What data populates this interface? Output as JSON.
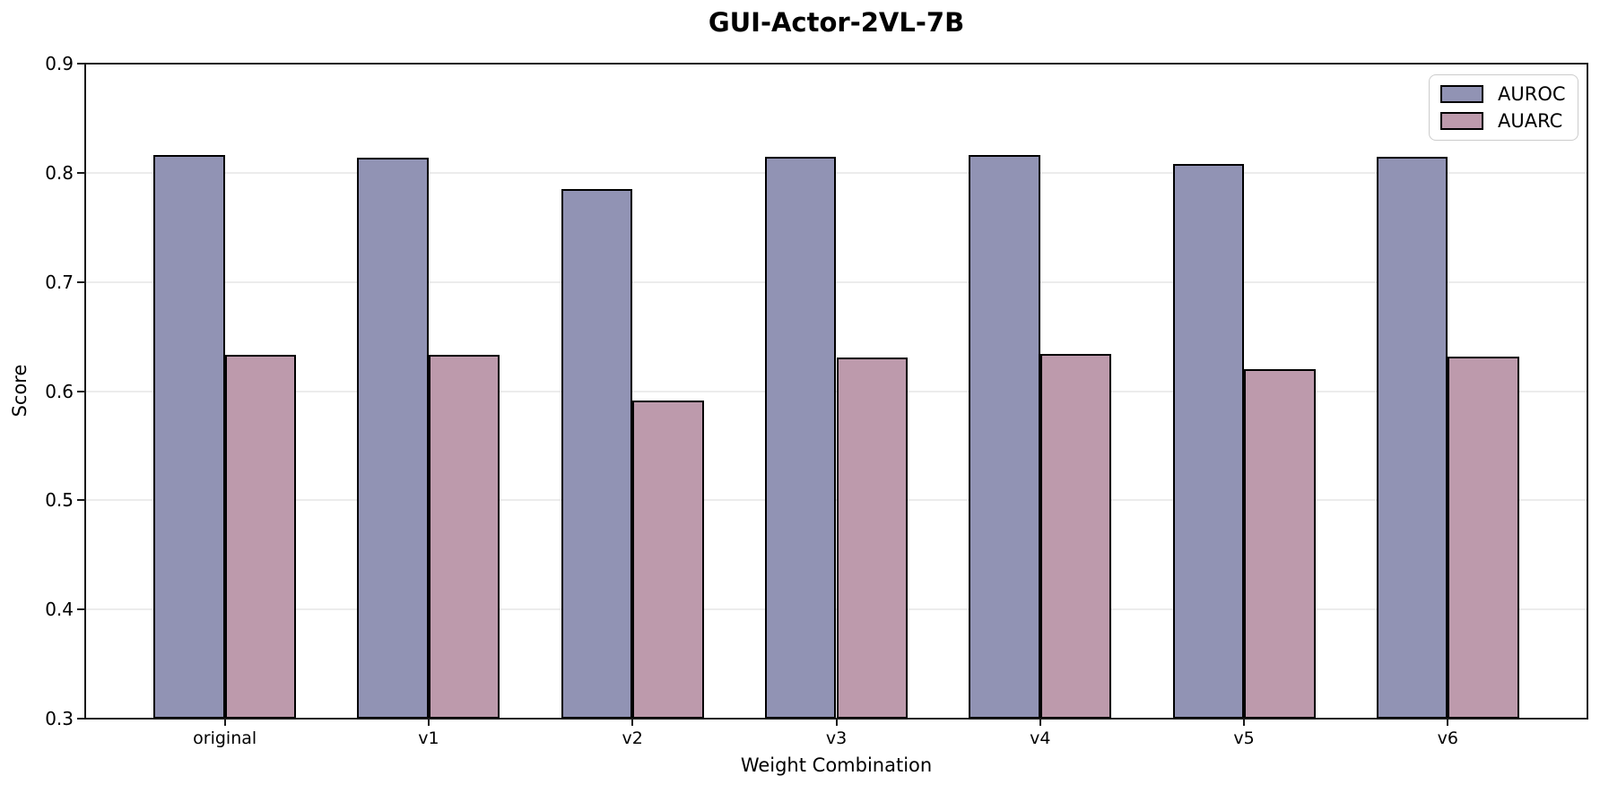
{
  "chart_data": {
    "type": "bar",
    "title": "GUI-Actor-2VL-7B",
    "xlabel": "Weight Combination",
    "ylabel": "Score",
    "categories": [
      "original",
      "v1",
      "v2",
      "v3",
      "v4",
      "v5",
      "v6"
    ],
    "series": [
      {
        "name": "AUROC",
        "color": "#9193b4",
        "values": [
          0.816,
          0.814,
          0.785,
          0.815,
          0.816,
          0.808,
          0.815
        ]
      },
      {
        "name": "AUARC",
        "color": "#bd9aac",
        "values": [
          0.633,
          0.633,
          0.591,
          0.631,
          0.634,
          0.62,
          0.632
        ]
      }
    ],
    "ylim": [
      0.3,
      0.9
    ],
    "yticks": [
      0.3,
      0.4,
      0.5,
      0.6,
      0.7,
      0.8,
      0.9
    ],
    "xlim": [
      -0.685,
      6.685
    ],
    "bar_width": 0.35,
    "grid": true,
    "gridline_color": "#ececec",
    "edge_color": "#000000",
    "legend_position": "upper right"
  }
}
